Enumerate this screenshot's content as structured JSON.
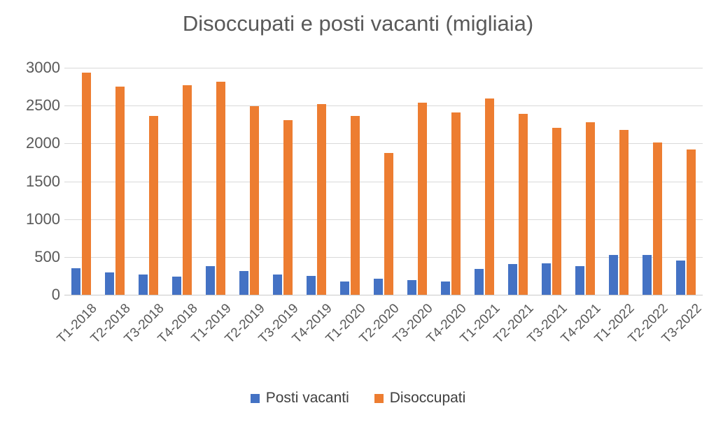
{
  "chart_data": {
    "type": "bar",
    "title": "Disoccupati e posti vacanti (migliaia)",
    "categories": [
      "T1-2018",
      "T2-2018",
      "T3-2018",
      "T4-2018",
      "T1-2019",
      "T2-2019",
      "T3-2019",
      "T4-2019",
      "T1-2020",
      "T2-2020",
      "T3-2020",
      "T4-2020",
      "T1-2021",
      "T2-2021",
      "T3-2021",
      "T4-2021",
      "T1-2022",
      "T2-2022",
      "T3-2022"
    ],
    "series": [
      {
        "name": "Posti vacanti",
        "color": "#4472C4",
        "values": [
          355,
          295,
          265,
          240,
          380,
          310,
          270,
          250,
          175,
          210,
          190,
          175,
          340,
          410,
          420,
          380,
          530,
          525,
          455
        ]
      },
      {
        "name": "Disoccupati",
        "color": "#ED7D31",
        "values": [
          2940,
          2755,
          2360,
          2765,
          2815,
          2495,
          2310,
          2520,
          2365,
          1875,
          2540,
          2410,
          2590,
          2390,
          2210,
          2280,
          2175,
          2010,
          1920
        ]
      }
    ],
    "xlabel": "",
    "ylabel": "",
    "ylim": [
      0,
      3000
    ],
    "yticks": [
      0,
      500,
      1000,
      1500,
      2000,
      2500,
      3000
    ],
    "grid": true,
    "legend_position": "bottom",
    "colors": {
      "title_text": "#595959",
      "axis_text": "#595959",
      "legend_text": "#404040",
      "gridline": "#d9d9d9",
      "background": "#ffffff"
    }
  }
}
